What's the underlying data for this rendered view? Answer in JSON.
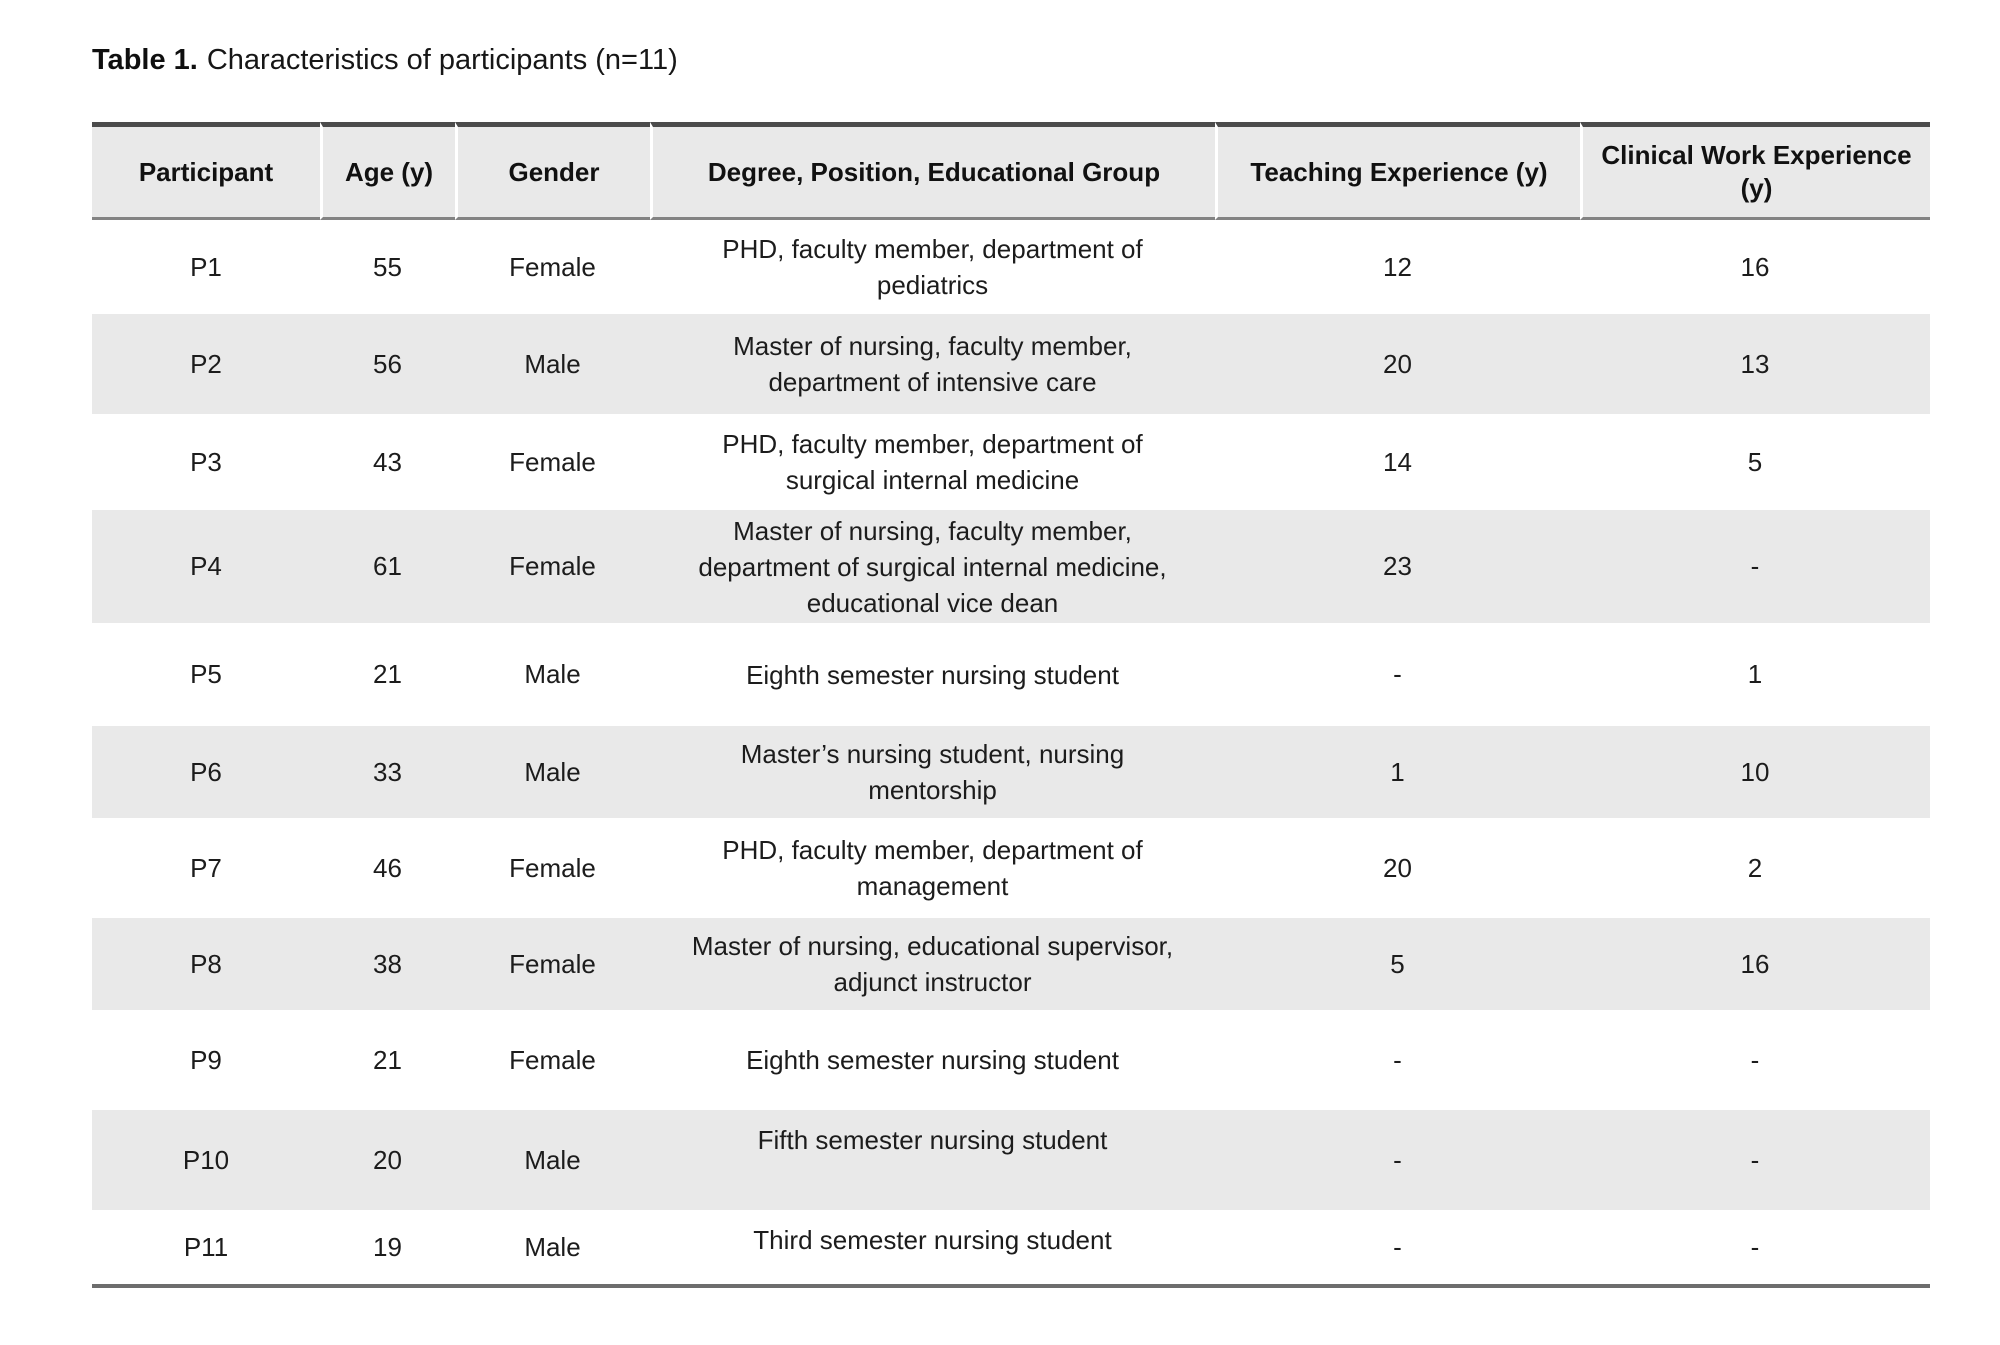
{
  "title": {
    "bold": "Table 1.",
    "rest": "Characteristics of participants (n=11)"
  },
  "table": {
    "columns": [
      {
        "key": "participant",
        "label": "Participant"
      },
      {
        "key": "age",
        "label": "Age (y)"
      },
      {
        "key": "gender",
        "label": "Gender"
      },
      {
        "key": "degree",
        "label": "Degree, Position, Educational Group"
      },
      {
        "key": "teaching",
        "label": "Teaching Experience (y)"
      },
      {
        "key": "clinical",
        "label": "Clinical Work Experience (y)"
      }
    ],
    "rows": [
      {
        "participant": "P1",
        "age": "55",
        "gender": "Female",
        "degree": "PHD, faculty member, department of pediatrics",
        "teaching": "12",
        "clinical": "16"
      },
      {
        "participant": "P2",
        "age": "56",
        "gender": "Male",
        "degree": "Master of nursing, faculty member, department of intensive care",
        "teaching": "20",
        "clinical": "13"
      },
      {
        "participant": "P3",
        "age": "43",
        "gender": "Female",
        "degree": "PHD, faculty member, department of surgical internal medicine",
        "teaching": "14",
        "clinical": "5"
      },
      {
        "participant": "P4",
        "age": "61",
        "gender": "Female",
        "degree": "Master of nursing, faculty member, department of surgical internal medicine, educational vice dean",
        "teaching": "23",
        "clinical": "-"
      },
      {
        "participant": "P5",
        "age": "21",
        "gender": "Male",
        "degree": "Eighth semester nursing student",
        "teaching": "-",
        "clinical": "1"
      },
      {
        "participant": "P6",
        "age": "33",
        "gender": "Male",
        "degree": "Master’s nursing student, nursing mentorship",
        "teaching": "1",
        "clinical": "10"
      },
      {
        "participant": "P7",
        "age": "46",
        "gender": "Female",
        "degree": "PHD, faculty member, department of management",
        "teaching": "20",
        "clinical": "2"
      },
      {
        "participant": "P8",
        "age": "38",
        "gender": "Female",
        "degree": "Master of nursing, educational supervisor, adjunct instructor",
        "teaching": "5",
        "clinical": "16"
      },
      {
        "participant": "P9",
        "age": "21",
        "gender": "Female",
        "degree": "Eighth semester nursing student",
        "teaching": "-",
        "clinical": "-"
      },
      {
        "participant": "P10",
        "age": "20",
        "gender": "Male",
        "degree": "Fifth semester nursing student",
        "teaching": "-",
        "clinical": "-"
      },
      {
        "participant": "P11",
        "age": "19",
        "gender": "Male",
        "degree": "Third semester nursing student",
        "teaching": "-",
        "clinical": "-"
      }
    ]
  },
  "colors": {
    "row_stripe": "#e9e9e9",
    "header_bg": "#e9e9e9",
    "top_border": "#4b4b4b",
    "rule_border": "#838383",
    "bottom_border": "#6d6d6d"
  }
}
